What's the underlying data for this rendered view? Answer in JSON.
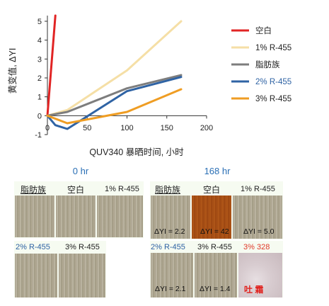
{
  "chart_data": {
    "type": "line",
    "xlabel": "QUV340 暴晒时间, 小时",
    "ylabel": "黄变值, ΔYI",
    "xlim": [
      0,
      200
    ],
    "ylim": [
      -1,
      5.3
    ],
    "xticks": [
      "0",
      "50",
      "100",
      "150",
      "200"
    ],
    "yticks": [
      "-1",
      "0",
      "1",
      "2",
      "3",
      "4",
      "5"
    ],
    "series": [
      {
        "name": "空白",
        "color": "#e12424",
        "x": [
          0,
          10
        ],
        "y": [
          0,
          5.3
        ]
      },
      {
        "name": "1% R-455",
        "color": "#f5dfa6",
        "x": [
          0,
          25,
          100,
          168
        ],
        "y": [
          0,
          0.3,
          2.4,
          5.0
        ]
      },
      {
        "name": "脂肪族",
        "color": "#7d7d7d",
        "x": [
          0,
          25,
          100,
          168
        ],
        "y": [
          0,
          0.2,
          1.45,
          2.15
        ]
      },
      {
        "name": "2% R-455",
        "color": "#2f63a4",
        "x": [
          0,
          10,
          25,
          100,
          168
        ],
        "y": [
          0,
          -0.5,
          -0.7,
          1.3,
          2.05
        ]
      },
      {
        "name": "3% R-455",
        "color": "#ef9d23",
        "x": [
          0,
          25,
          100,
          168
        ],
        "y": [
          0,
          -0.4,
          0.2,
          1.4
        ]
      }
    ]
  },
  "legend": [
    {
      "label": "空白",
      "color": "#e12424",
      "text_color": "#222222"
    },
    {
      "label": "1% R-455",
      "color": "#f5dfa6",
      "text_color": "#222222"
    },
    {
      "label": "脂肪族",
      "color": "#7d7d7d",
      "text_color": "#222222"
    },
    {
      "label": "2% R-455",
      "color": "#2f63a4",
      "text_color": "#2f63a4"
    },
    {
      "label": "3% R-455",
      "color": "#ef9d23",
      "text_color": "#222222"
    }
  ],
  "photos": {
    "left_header": "0 hr",
    "right_header": "168 hr",
    "left_top_labels": [
      "脂肪族",
      "空白",
      "1% R-455"
    ],
    "left_bottom_labels": [
      "2% R-455",
      "3% R-455"
    ],
    "right_top_labels": [
      "脂肪族",
      "空白",
      "1% R-455"
    ],
    "right_top_values": [
      "ΔYI = 2.2",
      "ΔYI = 42",
      "ΔYI = 5.0"
    ],
    "right_bottom_labels": [
      "2% R-455",
      "3% R-455",
      "3% 328"
    ],
    "right_bottom_values": [
      "ΔYI = 2.1",
      "ΔYI = 1.4",
      "吐  霜"
    ]
  }
}
